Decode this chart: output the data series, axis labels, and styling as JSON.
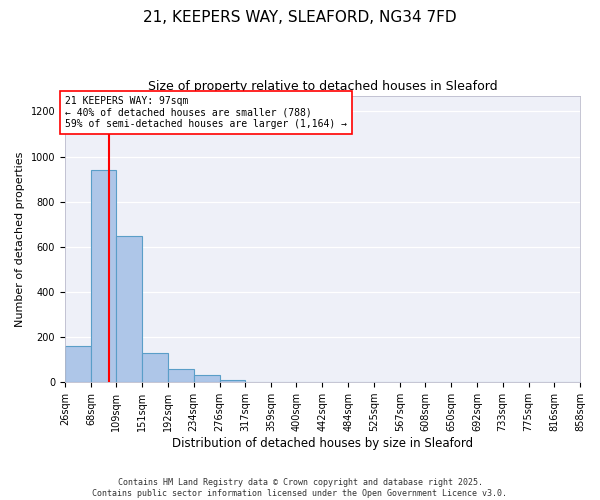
{
  "title": "21, KEEPERS WAY, SLEAFORD, NG34 7FD",
  "subtitle": "Size of property relative to detached houses in Sleaford",
  "xlabel": "Distribution of detached houses by size in Sleaford",
  "ylabel": "Number of detached properties",
  "bin_edges": [
    26,
    68,
    109,
    151,
    192,
    234,
    276,
    317,
    359,
    400,
    442,
    484,
    525,
    567,
    608,
    650,
    692,
    733,
    775,
    816,
    858
  ],
  "bar_heights": [
    160,
    940,
    650,
    130,
    60,
    30,
    10,
    3,
    1,
    1,
    0,
    0,
    0,
    0,
    0,
    0,
    0,
    0,
    0,
    0
  ],
  "bar_color": "#aec6e8",
  "bar_edgecolor": "#5a9ec8",
  "bar_linewidth": 0.8,
  "vline_x": 97,
  "vline_color": "red",
  "vline_linewidth": 1.5,
  "annotation_text": "21 KEEPERS WAY: 97sqm\n← 40% of detached houses are smaller (788)\n59% of semi-detached houses are larger (1,164) →",
  "annotation_box_color": "white",
  "annotation_box_edgecolor": "red",
  "ylim": [
    0,
    1270
  ],
  "yticks": [
    0,
    200,
    400,
    600,
    800,
    1000,
    1200
  ],
  "background_color": "#eef0f8",
  "grid_color": "white",
  "footer_text": "Contains HM Land Registry data © Crown copyright and database right 2025.\nContains public sector information licensed under the Open Government Licence v3.0.",
  "title_fontsize": 11,
  "subtitle_fontsize": 9,
  "xlabel_fontsize": 8.5,
  "ylabel_fontsize": 8,
  "tick_fontsize": 7,
  "annotation_fontsize": 7,
  "footer_fontsize": 6
}
